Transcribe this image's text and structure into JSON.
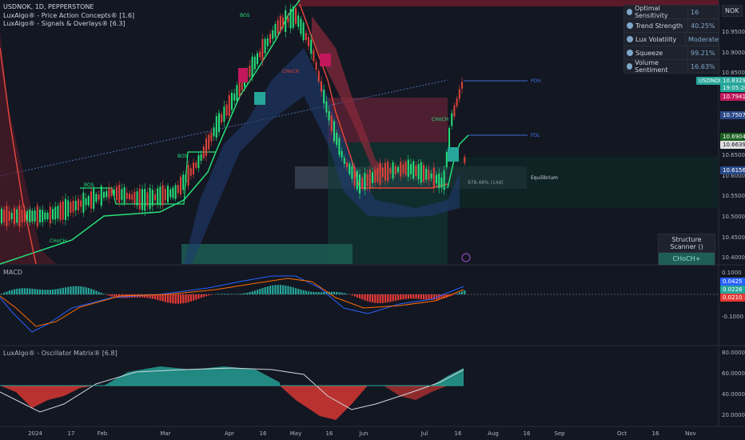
{
  "header": {
    "symbol_line": "USDNOK, 1D, PEPPERSTONE",
    "indicator1": "LuxAlgo® - Price Action Concepts® [1.6]",
    "indicator2": "LuxAlgo® - Signals & Overlays® [6.3]"
  },
  "currency": "NOK",
  "stats": [
    {
      "icon": "gauge-icon",
      "label": "Optimal Sensitivity",
      "value": "16"
    },
    {
      "icon": "trend-icon",
      "label": "Trend Strength",
      "value": "40.25%"
    },
    {
      "icon": "volatility-icon",
      "label": "Lux Volatility",
      "value": "Moderate"
    },
    {
      "icon": "squeeze-icon",
      "label": "Squeeze",
      "value": "99.21%"
    },
    {
      "icon": "drop-icon",
      "label": "Volume Sentiment",
      "value": "16.63%"
    }
  ],
  "price_axis": [
    "10.9500",
    "10.9000",
    "10.8500",
    "10.6500",
    "10.6000",
    "10.5500",
    "10.5000",
    "10.4500",
    "10.4000"
  ],
  "price_tags": [
    {
      "text": "USDNOK",
      "color": "#26a69a"
    },
    {
      "text": "10.8329",
      "color": "#26a69a"
    },
    {
      "text": "19:05:20",
      "color": "#26a69a"
    },
    {
      "text": "10.7941",
      "color": "#c2185b"
    },
    {
      "text": "10.7507",
      "color": "#2a4a8a"
    },
    {
      "text": "10.6904",
      "color": "#1b5e20"
    },
    {
      "text": "10.6639",
      "color": "#e0e0e0"
    },
    {
      "text": "10.6156",
      "color": "#2a4a8a"
    }
  ],
  "labels": {
    "pdh": "PDH",
    "pdl": "PDL",
    "equilibrium": "Equilibrium",
    "bos": "BOS",
    "choch": "CHoCH",
    "choch_plus": "CHoCH+",
    "eq_pct": "978.48% (14d)"
  },
  "scanner": {
    "title": "Structure Scanner ()",
    "value": "CHoCH+"
  },
  "macd": {
    "title": "MACD",
    "axis": [
      "0.1000",
      "-0.1000"
    ],
    "tags": [
      "0.0425",
      "0.0226",
      "0.0210"
    ]
  },
  "osc": {
    "title": "LuxAlgo® - Oscillator Matrix® [6.8]",
    "axis": [
      "80.0000",
      "60.0000",
      "40.0000",
      "20.0000"
    ]
  },
  "x_labels": [
    "2024",
    "17",
    "Feb",
    "Mar",
    "Apr",
    "16",
    "May",
    "16",
    "Jun",
    "Jul",
    "16",
    "Aug",
    "16",
    "Sep",
    "Oct",
    "16",
    "Nov"
  ]
}
